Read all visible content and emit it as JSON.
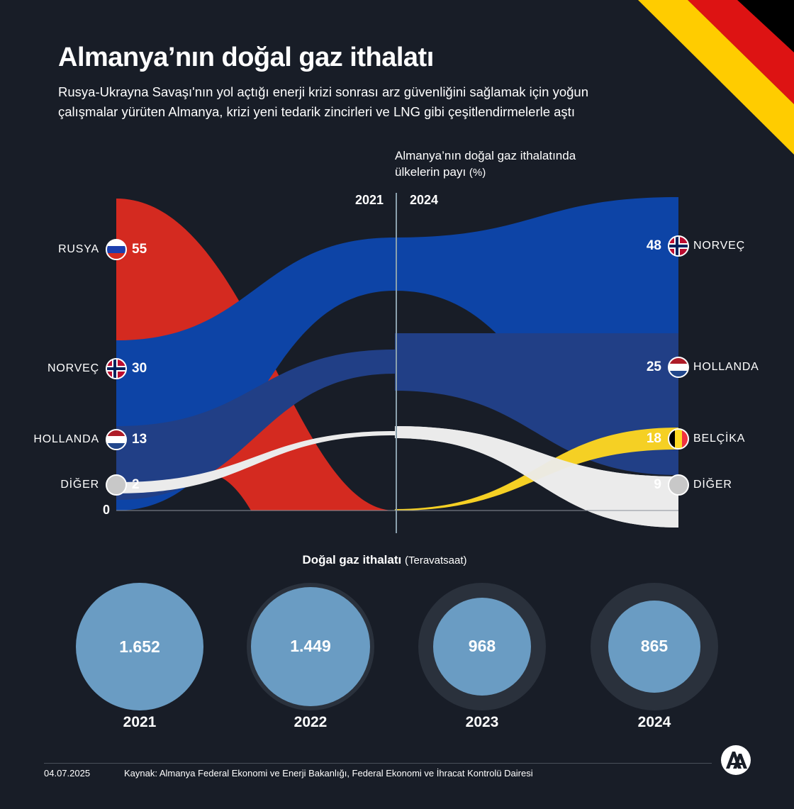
{
  "title": "Almanya’nın doğal gaz ithalatı",
  "subtitle": "Rusya-Ukrayna Savaşı'nın yol açtığı enerji krizi sonrası arz güvenliğini sağlamak için yoğun çalışmalar yürüten Almanya, krizi yeni tedarik zincirleri ve LNG gibi çeşitlendirmelerle aştı",
  "sankey_note": {
    "text": "Almanya’nın doğal gaz ithalatında ülkelerin payı",
    "unit": "(%)"
  },
  "colors": {
    "background": "#181d27",
    "russia": "#d42a20",
    "norway": "#0d44a6",
    "netherlands": "#213f86",
    "other": "#ebebeb",
    "belgium": "#f5d024",
    "bubble": "#6a9cc3",
    "bubble_ring": "#2a313c"
  },
  "chart_data": [
    {
      "type": "sankey",
      "unit": "%",
      "years": [
        "2021",
        "2024"
      ],
      "zero_label": "0",
      "left": [
        {
          "label": "RUSYA",
          "value": 55,
          "flag": "flag-russia-icon"
        },
        {
          "label": "NORVEÇ",
          "value": 30,
          "flag": "flag-norway-icon"
        },
        {
          "label": "HOLLANDA",
          "value": 13,
          "flag": "flag-netherlands-icon"
        },
        {
          "label": "DİĞER",
          "value": 2,
          "flag": "circle-icon"
        }
      ],
      "right": [
        {
          "label": "NORVEÇ",
          "value": 48,
          "flag": "flag-norway-icon"
        },
        {
          "label": "HOLLANDA",
          "value": 25,
          "flag": "flag-netherlands-icon"
        },
        {
          "label": "BELÇİKA",
          "value": 18,
          "flag": "flag-belgium-icon"
        },
        {
          "label": "DİĞER",
          "value": 9,
          "flag": "circle-icon"
        }
      ]
    },
    {
      "type": "bubble",
      "title": "Doğal gaz ithalatı",
      "unit": "(Teravatsaat)",
      "categories": [
        "2021",
        "2022",
        "2023",
        "2024"
      ],
      "values": [
        1652,
        1449,
        968,
        865
      ],
      "labels": [
        "1.652",
        "1.449",
        "968",
        "865"
      ]
    }
  ],
  "footer": {
    "date": "04.07.2025",
    "source": "Kaynak: Almanya Federal Ekonomi ve Enerji Bakanlığı, Federal Ekonomi ve İhracat Kontrolü Dairesi"
  },
  "logo": {
    "text": "AA",
    "icon": "aa-logo-icon"
  }
}
